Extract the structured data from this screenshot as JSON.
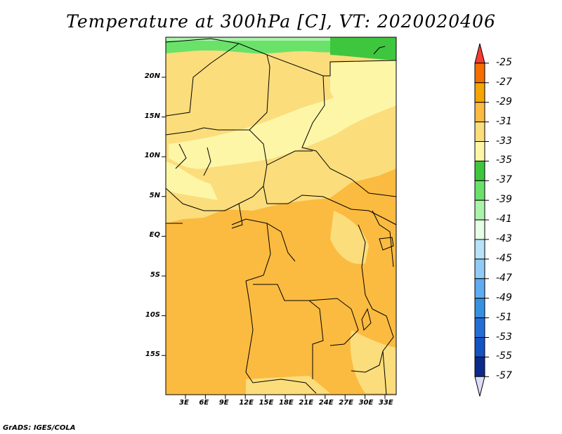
{
  "title": "Temperature at 300hPa [C], VT: 2020020406",
  "credit": "GrADS: IGES/COLA",
  "axes": {
    "lon_labels": [
      "3E",
      "6E",
      "9E",
      "12E",
      "15E",
      "18E",
      "21E",
      "24E",
      "27E",
      "30E",
      "33E"
    ],
    "lat_labels": [
      "20N",
      "15N",
      "10N",
      "5N",
      "EQ",
      "5S",
      "10S",
      "15S"
    ]
  },
  "colorbar": {
    "labels": [
      "-25",
      "-27",
      "-29",
      "-31",
      "-33",
      "-35",
      "-37",
      "-39",
      "-41",
      "-43",
      "-45",
      "-47",
      "-49",
      "-51",
      "-53",
      "-55",
      "-57"
    ],
    "colors": [
      "#fa3c2c",
      "#f56e00",
      "#f5a500",
      "#fbbb40",
      "#fbdd7c",
      "#fdf6a7",
      "#3ec63e",
      "#6ae26a",
      "#abf3ab",
      "#e6fde6",
      "#b8e2f9",
      "#91cbf5",
      "#5fadf0",
      "#3690e3",
      "#236fd6",
      "#1453c3",
      "#0c2a8c",
      "#dcdcfb"
    ]
  },
  "legend_colors": {
    "orange": "#fbbb40",
    "light_orange": "#fbdd7c",
    "pale_yellow": "#fdf6a7",
    "green": "#3ec63e",
    "light_green": "#6ae26a",
    "pale_green": "#abf3ab"
  }
}
